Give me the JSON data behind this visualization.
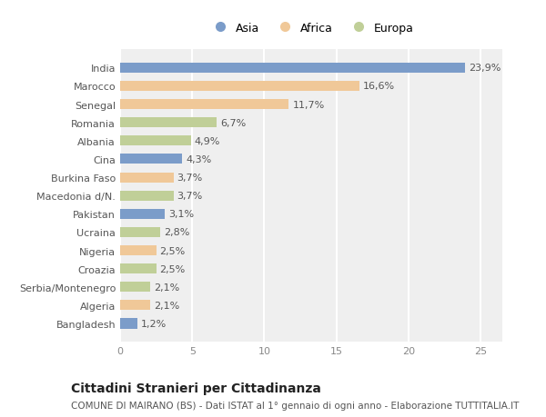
{
  "title": "Cittadini Stranieri per Cittadinanza",
  "subtitle": "COMUNE DI MAIRANO (BS) - Dati ISTAT al 1° gennaio di ogni anno - Elaborazione TUTTITALIA.IT",
  "categories": [
    "India",
    "Marocco",
    "Senegal",
    "Romania",
    "Albania",
    "Cina",
    "Burkina Faso",
    "Macedonia d/N.",
    "Pakistan",
    "Ucraina",
    "Nigeria",
    "Croazia",
    "Serbia/Montenegro",
    "Algeria",
    "Bangladesh"
  ],
  "values": [
    23.9,
    16.6,
    11.7,
    6.7,
    4.9,
    4.3,
    3.7,
    3.7,
    3.1,
    2.8,
    2.5,
    2.5,
    2.1,
    2.1,
    1.2
  ],
  "labels": [
    "23,9%",
    "16,6%",
    "11,7%",
    "6,7%",
    "4,9%",
    "4,3%",
    "3,7%",
    "3,7%",
    "3,1%",
    "2,8%",
    "2,5%",
    "2,5%",
    "2,1%",
    "2,1%",
    "1,2%"
  ],
  "colors": [
    "#7b9cc9",
    "#f0c898",
    "#f0c898",
    "#c0cf98",
    "#c0cf98",
    "#7b9cc9",
    "#f0c898",
    "#c0cf98",
    "#7b9cc9",
    "#c0cf98",
    "#f0c898",
    "#c0cf98",
    "#c0cf98",
    "#f0c898",
    "#7b9cc9"
  ],
  "legend_labels": [
    "Asia",
    "Africa",
    "Europa"
  ],
  "legend_colors": [
    "#7b9cc9",
    "#f0c898",
    "#c0cf98"
  ],
  "xlim": [
    0,
    26.5
  ],
  "xticks": [
    0,
    5,
    10,
    15,
    20,
    25
  ],
  "background_color": "#ffffff",
  "plot_bg_color": "#efefef",
  "grid_color": "#ffffff",
  "label_fontsize": 8,
  "ytick_fontsize": 8,
  "xtick_fontsize": 8,
  "title_fontsize": 10,
  "subtitle_fontsize": 7.5,
  "bar_height": 0.55
}
